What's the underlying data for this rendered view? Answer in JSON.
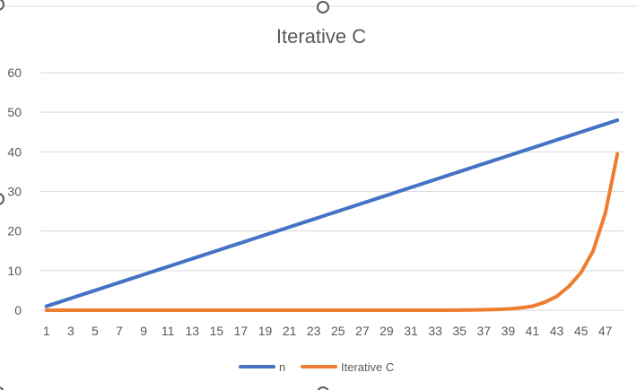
{
  "chart_data": {
    "type": "line",
    "title": "Iterative C",
    "x": [
      1,
      2,
      3,
      4,
      5,
      6,
      7,
      8,
      9,
      10,
      11,
      12,
      13,
      14,
      15,
      16,
      17,
      18,
      19,
      20,
      21,
      22,
      23,
      24,
      25,
      26,
      27,
      28,
      29,
      30,
      31,
      32,
      33,
      34,
      35,
      36,
      37,
      38,
      39,
      40,
      41,
      42,
      43,
      44,
      45,
      46,
      47,
      48
    ],
    "x_tick_labels": [
      "1",
      "3",
      "5",
      "7",
      "9",
      "11",
      "13",
      "15",
      "17",
      "19",
      "21",
      "23",
      "25",
      "27",
      "29",
      "31",
      "33",
      "35",
      "37",
      "39",
      "41",
      "43",
      "45",
      "47"
    ],
    "ylim": [
      0,
      60
    ],
    "y_tick_labels": [
      "0",
      "10",
      "20",
      "30",
      "40",
      "50",
      "60"
    ],
    "y_ticks": [
      0,
      10,
      20,
      30,
      40,
      50,
      60
    ],
    "grid": true,
    "legend": "bottom",
    "series": [
      {
        "name": "n",
        "color": "#4472C4",
        "values": [
          1,
          2,
          3,
          4,
          5,
          6,
          7,
          8,
          9,
          10,
          11,
          12,
          13,
          14,
          15,
          16,
          17,
          18,
          19,
          20,
          21,
          22,
          23,
          24,
          25,
          26,
          27,
          28,
          29,
          30,
          31,
          32,
          33,
          34,
          35,
          36,
          37,
          38,
          39,
          40,
          41,
          42,
          43,
          44,
          45,
          46,
          47,
          48
        ]
      },
      {
        "name": "Iterative C",
        "color": "#ED7D31",
        "values": [
          0,
          0,
          0,
          0,
          0,
          0,
          0,
          0,
          0,
          0,
          0,
          0,
          0,
          0,
          0,
          0,
          0,
          0,
          0,
          0,
          0,
          0,
          0,
          0,
          0,
          0,
          0,
          0,
          0,
          0,
          0,
          0,
          0,
          0,
          0.02,
          0.05,
          0.1,
          0.2,
          0.3,
          0.6,
          1.0,
          2.0,
          3.5,
          6.0,
          9.5,
          15.0,
          24.5,
          39.5
        ]
      }
    ]
  }
}
